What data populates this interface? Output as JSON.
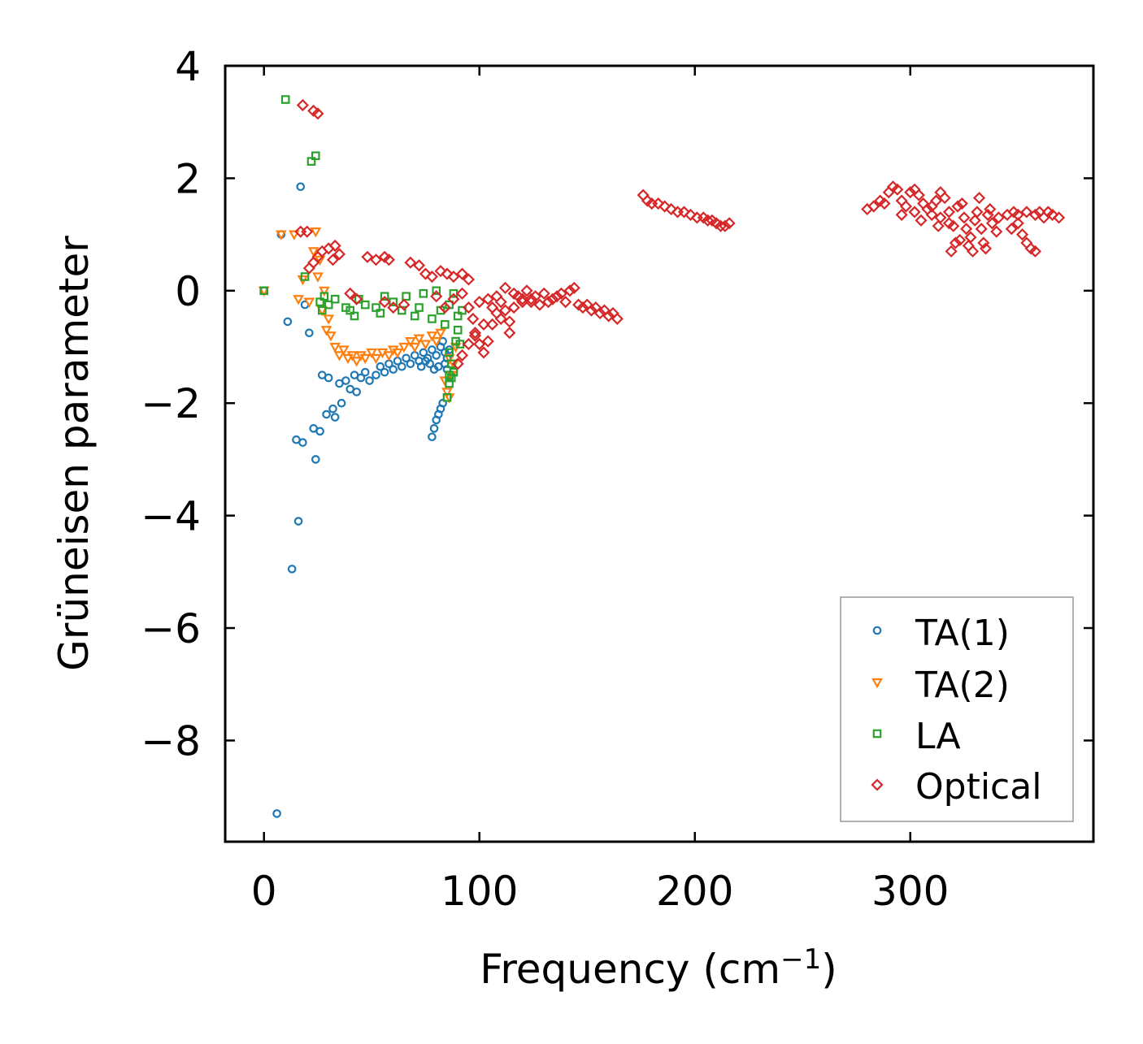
{
  "chart_data": {
    "type": "scatter",
    "title": "",
    "xlabel": "Frequency (cm",
    "xlabel_sup": "−1",
    "xlabel_end": ")",
    "ylabel": "Grüneisen parameter",
    "xlim": [
      -18,
      385
    ],
    "ylim": [
      -9.8,
      4
    ],
    "xticks": [
      0,
      100,
      200,
      300
    ],
    "xtick_labels": [
      "0",
      "100",
      "200",
      "300"
    ],
    "yticks": [
      4,
      2,
      0,
      -2,
      -4,
      -6,
      -8
    ],
    "ytick_labels": [
      "4",
      "2",
      "0",
      "−2",
      "−4",
      "−6",
      "−8"
    ],
    "legend_position": "lower-right",
    "series": [
      {
        "name": "TA(1)",
        "marker": "circle",
        "color": "#1f77b4",
        "points": [
          [
            0,
            0
          ],
          [
            6,
            -9.3
          ],
          [
            8,
            1.0
          ],
          [
            11,
            -0.55
          ],
          [
            13,
            -4.95
          ],
          [
            15,
            -2.65
          ],
          [
            16,
            -4.1
          ],
          [
            17,
            1.85
          ],
          [
            18,
            -2.7
          ],
          [
            19,
            -0.25
          ],
          [
            21,
            -0.75
          ],
          [
            23,
            -2.45
          ],
          [
            24,
            -3.0
          ],
          [
            26,
            -2.5
          ],
          [
            27,
            -1.5
          ],
          [
            29,
            -2.2
          ],
          [
            30,
            -1.55
          ],
          [
            32,
            -2.1
          ],
          [
            33,
            -2.25
          ],
          [
            35,
            -1.65
          ],
          [
            36,
            -2.0
          ],
          [
            38,
            -1.6
          ],
          [
            40,
            -1.75
          ],
          [
            42,
            -1.5
          ],
          [
            43,
            -1.8
          ],
          [
            45,
            -1.55
          ],
          [
            47,
            -1.45
          ],
          [
            49,
            -1.6
          ],
          [
            52,
            -1.5
          ],
          [
            54,
            -1.35
          ],
          [
            56,
            -1.45
          ],
          [
            58,
            -1.3
          ],
          [
            60,
            -1.4
          ],
          [
            62,
            -1.25
          ],
          [
            64,
            -1.35
          ],
          [
            66,
            -1.2
          ],
          [
            68,
            -1.3
          ],
          [
            70,
            -1.15
          ],
          [
            72,
            -1.25
          ],
          [
            74,
            -1.1
          ],
          [
            76,
            -1.2
          ],
          [
            78,
            -1.05
          ],
          [
            80,
            -1.15
          ],
          [
            82,
            -1.0
          ],
          [
            84,
            -1.1
          ],
          [
            78,
            -2.6
          ],
          [
            79,
            -2.45
          ],
          [
            80,
            -2.3
          ],
          [
            81,
            -2.2
          ],
          [
            82,
            -2.1
          ],
          [
            83,
            -2.0
          ],
          [
            84,
            -1.3
          ],
          [
            85,
            -1.2
          ],
          [
            83,
            -0.9
          ],
          [
            85,
            -1.4
          ],
          [
            86,
            -1.05
          ],
          [
            77,
            -1.3
          ],
          [
            79,
            -1.4
          ],
          [
            81,
            -1.35
          ],
          [
            75,
            -1.25
          ],
          [
            73,
            -1.35
          ]
        ]
      },
      {
        "name": "TA(2)",
        "marker": "triangle-down",
        "color": "#ff7f0e",
        "points": [
          [
            0,
            0
          ],
          [
            8,
            1.0
          ],
          [
            14,
            1.0
          ],
          [
            16,
            -0.15
          ],
          [
            18,
            0.2
          ],
          [
            21,
            -0.2
          ],
          [
            23,
            0.7
          ],
          [
            24,
            1.05
          ],
          [
            25,
            0.25
          ],
          [
            26,
            0.55
          ],
          [
            27,
            -0.35
          ],
          [
            28,
            0.0
          ],
          [
            29,
            -0.7
          ],
          [
            30,
            -0.5
          ],
          [
            31,
            -0.8
          ],
          [
            33,
            -1.0
          ],
          [
            35,
            -1.15
          ],
          [
            37,
            -1.05
          ],
          [
            39,
            -1.2
          ],
          [
            41,
            -1.15
          ],
          [
            43,
            -1.25
          ],
          [
            45,
            -1.15
          ],
          [
            47,
            -1.2
          ],
          [
            50,
            -1.1
          ],
          [
            52,
            -1.2
          ],
          [
            55,
            -1.1
          ],
          [
            58,
            -1.15
          ],
          [
            60,
            -1.05
          ],
          [
            62,
            -1.1
          ],
          [
            65,
            -1.0
          ],
          [
            68,
            -0.9
          ],
          [
            70,
            -1.0
          ],
          [
            72,
            -0.85
          ],
          [
            75,
            -0.95
          ],
          [
            78,
            -0.8
          ],
          [
            80,
            -0.9
          ],
          [
            82,
            -0.75
          ],
          [
            84,
            -1.6
          ],
          [
            85,
            -1.8
          ],
          [
            86,
            -1.9
          ],
          [
            87,
            -1.5
          ],
          [
            86,
            -1.2
          ],
          [
            88,
            -1.3
          ],
          [
            89,
            -1.0
          ]
        ]
      },
      {
        "name": "LA",
        "marker": "square",
        "color": "#2ca02c",
        "points": [
          [
            0,
            0
          ],
          [
            10,
            3.4
          ],
          [
            19,
            0.25
          ],
          [
            22,
            2.3
          ],
          [
            24,
            2.4
          ],
          [
            26,
            -0.2
          ],
          [
            27,
            -0.35
          ],
          [
            28,
            -0.1
          ],
          [
            30,
            -0.25
          ],
          [
            33,
            -0.15
          ],
          [
            38,
            -0.3
          ],
          [
            40,
            -0.35
          ],
          [
            42,
            -0.45
          ],
          [
            44,
            -0.15
          ],
          [
            47,
            -0.25
          ],
          [
            52,
            -0.3
          ],
          [
            54,
            -0.4
          ],
          [
            56,
            -0.1
          ],
          [
            60,
            -0.2
          ],
          [
            64,
            -0.35
          ],
          [
            66,
            -0.1
          ],
          [
            70,
            -0.45
          ],
          [
            72,
            -0.3
          ],
          [
            74,
            -0.05
          ],
          [
            78,
            -0.5
          ],
          [
            80,
            0.0
          ],
          [
            82,
            -0.35
          ],
          [
            84,
            -0.6
          ],
          [
            86,
            -0.25
          ],
          [
            88,
            -0.05
          ],
          [
            90,
            -0.45
          ],
          [
            92,
            -0.35
          ],
          [
            86,
            -1.1
          ],
          [
            87,
            -1.3
          ],
          [
            88,
            -1.45
          ],
          [
            86,
            -1.65
          ],
          [
            87,
            -1.55
          ],
          [
            89,
            -0.9
          ],
          [
            90,
            -0.7
          ],
          [
            91,
            -0.95
          ],
          [
            85,
            -1.9
          ],
          [
            86,
            -1.5
          ]
        ]
      },
      {
        "name": "Optical",
        "marker": "diamond",
        "color": "#d62728",
        "points": [
          [
            18,
            3.3
          ],
          [
            23,
            3.2
          ],
          [
            25,
            3.15
          ],
          [
            17,
            1.05
          ],
          [
            20,
            1.05
          ],
          [
            21,
            0.4
          ],
          [
            23,
            0.5
          ],
          [
            25,
            0.6
          ],
          [
            27,
            0.7
          ],
          [
            30,
            0.75
          ],
          [
            33,
            0.8
          ],
          [
            35,
            0.65
          ],
          [
            32,
            0.55
          ],
          [
            40,
            -0.05
          ],
          [
            43,
            -0.15
          ],
          [
            48,
            0.6
          ],
          [
            52,
            0.55
          ],
          [
            56,
            0.6
          ],
          [
            58,
            0.55
          ],
          [
            56,
            -0.2
          ],
          [
            60,
            -0.3
          ],
          [
            65,
            -0.25
          ],
          [
            68,
            0.5
          ],
          [
            72,
            0.45
          ],
          [
            75,
            0.3
          ],
          [
            78,
            0.25
          ],
          [
            82,
            0.35
          ],
          [
            85,
            0.3
          ],
          [
            88,
            0.25
          ],
          [
            92,
            0.3
          ],
          [
            95,
            0.2
          ],
          [
            80,
            -0.1
          ],
          [
            84,
            -0.3
          ],
          [
            88,
            -0.15
          ],
          [
            92,
            -0.05
          ],
          [
            95,
            -0.3
          ],
          [
            97,
            -0.5
          ],
          [
            98,
            -0.8
          ],
          [
            100,
            -0.95
          ],
          [
            102,
            -1.1
          ],
          [
            104,
            -0.9
          ],
          [
            106,
            -0.6
          ],
          [
            108,
            -0.4
          ],
          [
            110,
            -0.2
          ],
          [
            112,
            -0.35
          ],
          [
            114,
            -0.55
          ],
          [
            116,
            -0.3
          ],
          [
            118,
            -0.1
          ],
          [
            120,
            -0.2
          ],
          [
            122,
            0.0
          ],
          [
            124,
            -0.15
          ],
          [
            126,
            -0.1
          ],
          [
            128,
            -0.25
          ],
          [
            130,
            -0.05
          ],
          [
            132,
            -0.2
          ],
          [
            134,
            -0.15
          ],
          [
            136,
            -0.1
          ],
          [
            138,
            -0.05
          ],
          [
            140,
            -0.2
          ],
          [
            142,
            0.0
          ],
          [
            144,
            0.05
          ],
          [
            146,
            -0.25
          ],
          [
            148,
            -0.3
          ],
          [
            150,
            -0.25
          ],
          [
            152,
            -0.35
          ],
          [
            154,
            -0.3
          ],
          [
            156,
            -0.4
          ],
          [
            158,
            -0.35
          ],
          [
            160,
            -0.45
          ],
          [
            162,
            -0.4
          ],
          [
            164,
            -0.5
          ],
          [
            100,
            -0.2
          ],
          [
            104,
            -0.15
          ],
          [
            108,
            -0.1
          ],
          [
            112,
            0.05
          ],
          [
            116,
            -0.05
          ],
          [
            120,
            -0.15
          ],
          [
            124,
            -0.2
          ],
          [
            90,
            -1.3
          ],
          [
            92,
            -1.15
          ],
          [
            95,
            -0.95
          ],
          [
            98,
            -0.75
          ],
          [
            102,
            -0.6
          ],
          [
            106,
            -0.3
          ],
          [
            110,
            -0.5
          ],
          [
            114,
            -0.75
          ],
          [
            176,
            1.7
          ],
          [
            178,
            1.6
          ],
          [
            180,
            1.55
          ],
          [
            183,
            1.55
          ],
          [
            186,
            1.5
          ],
          [
            189,
            1.45
          ],
          [
            192,
            1.4
          ],
          [
            195,
            1.4
          ],
          [
            198,
            1.35
          ],
          [
            201,
            1.3
          ],
          [
            204,
            1.3
          ],
          [
            206,
            1.25
          ],
          [
            208,
            1.25
          ],
          [
            210,
            1.2
          ],
          [
            212,
            1.15
          ],
          [
            214,
            1.15
          ],
          [
            216,
            1.2
          ],
          [
            280,
            1.45
          ],
          [
            283,
            1.5
          ],
          [
            286,
            1.6
          ],
          [
            288,
            1.55
          ],
          [
            290,
            1.75
          ],
          [
            292,
            1.85
          ],
          [
            294,
            1.8
          ],
          [
            296,
            1.6
          ],
          [
            298,
            1.5
          ],
          [
            300,
            1.75
          ],
          [
            302,
            1.8
          ],
          [
            304,
            1.7
          ],
          [
            306,
            1.55
          ],
          [
            308,
            1.45
          ],
          [
            310,
            1.5
          ],
          [
            312,
            1.6
          ],
          [
            314,
            1.75
          ],
          [
            316,
            1.65
          ],
          [
            318,
            1.4
          ],
          [
            320,
            1.15
          ],
          [
            321,
            0.85
          ],
          [
            322,
            1.5
          ],
          [
            324,
            1.55
          ],
          [
            325,
            1.3
          ],
          [
            326,
            1.1
          ],
          [
            327,
            0.8
          ],
          [
            328,
            0.95
          ],
          [
            330,
            1.25
          ],
          [
            331,
            1.4
          ],
          [
            332,
            1.65
          ],
          [
            333,
            1.1
          ],
          [
            334,
            0.85
          ],
          [
            335,
            0.75
          ],
          [
            336,
            1.35
          ],
          [
            337,
            1.45
          ],
          [
            338,
            1.2
          ],
          [
            340,
            1.05
          ],
          [
            341,
            1.3
          ],
          [
            319,
            0.7
          ],
          [
            323,
            0.9
          ],
          [
            329,
            0.7
          ],
          [
            310,
            1.35
          ],
          [
            314,
            1.3
          ],
          [
            318,
            1.2
          ],
          [
            302,
            1.4
          ],
          [
            296,
            1.35
          ],
          [
            305,
            1.25
          ],
          [
            313,
            1.15
          ],
          [
            345,
            1.35
          ],
          [
            348,
            1.4
          ],
          [
            350,
            1.2
          ],
          [
            352,
            1.0
          ],
          [
            354,
            0.85
          ],
          [
            356,
            0.75
          ],
          [
            358,
            0.7
          ],
          [
            350,
            1.35
          ],
          [
            354,
            1.4
          ],
          [
            358,
            1.35
          ],
          [
            362,
            1.3
          ],
          [
            366,
            1.35
          ],
          [
            369,
            1.3
          ],
          [
            360,
            1.4
          ],
          [
            364,
            1.4
          ],
          [
            347,
            1.1
          ]
        ]
      }
    ]
  }
}
